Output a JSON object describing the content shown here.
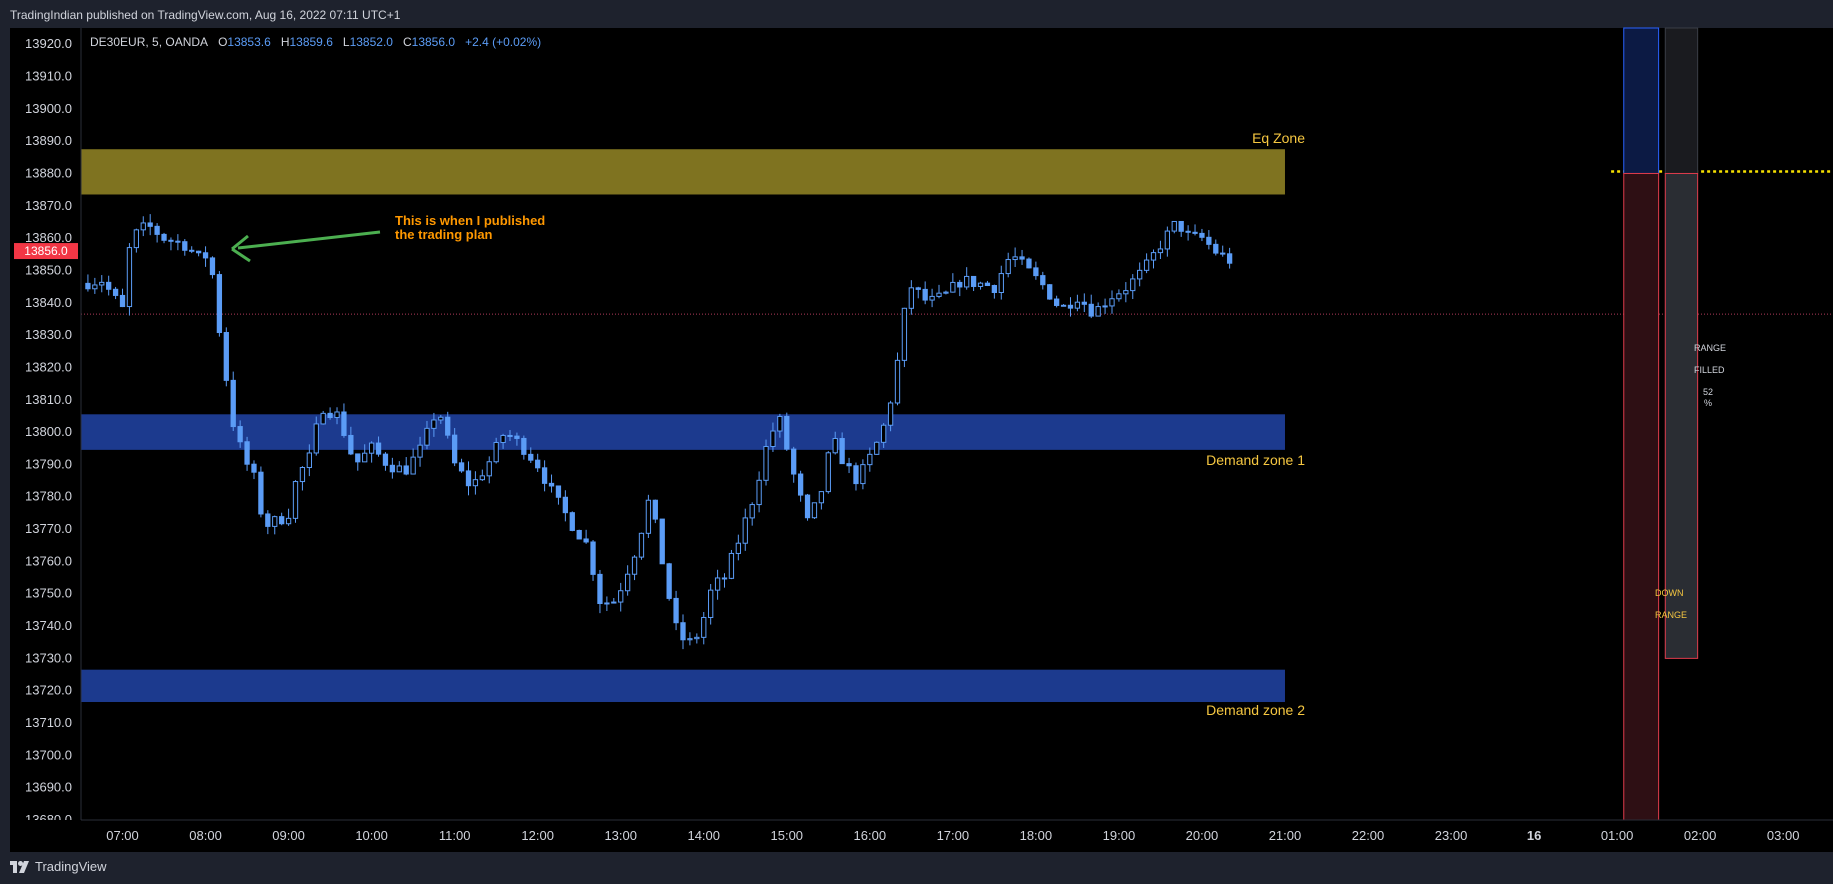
{
  "header": {
    "publish_info": "TradingIndian published on TradingView.com, Aug 16, 2022 07:11 UTC+1"
  },
  "legend": {
    "symbol": "DE30EUR, 5, OANDA",
    "o_label": "O",
    "o": "13853.6",
    "h_label": "H",
    "h": "13859.6",
    "l_label": "L",
    "l": "13852.0",
    "c_label": "C",
    "c": "13856.0",
    "change": "+2.4 (+0.02%)"
  },
  "price_tag": "13856.0",
  "zones": {
    "eq": "Eq Zone",
    "demand1": "Demand zone 1",
    "demand2": "Demand zone 2"
  },
  "annotation": [
    "This is when I published",
    "the trading plan"
  ],
  "range_boxes": {
    "down_range": "DOWN\n\nRANGE",
    "range_filled": "RANGE\n\nFILLED\n\n52\n%"
  },
  "footer": {
    "logo_text": "TradingView"
  },
  "colors": {
    "background": "#000000",
    "candle": "#5b9cf6",
    "eq_zone": "#7f7320",
    "demand_zone": "#1c3a8e",
    "zone_label": "#f6c741",
    "annotation": "#ff9800",
    "arrow": "#4caf50",
    "price_tag": "#f23645"
  },
  "chart_data": {
    "type": "candlestick",
    "symbol": "DE30EUR",
    "interval": "5",
    "ylim": [
      13680,
      13925
    ],
    "y_ticks": [
      13920,
      13910,
      13900,
      13890,
      13880,
      13870,
      13860,
      13850,
      13840,
      13830,
      13820,
      13810,
      13800,
      13790,
      13780,
      13770,
      13760,
      13750,
      13740,
      13730,
      13720,
      13710,
      13700,
      13690,
      13680
    ],
    "y_tick_labels": [
      "13920.0",
      "13910.0",
      "13900.0",
      "13890.0",
      "13880.0",
      "13870.0",
      "13860.0",
      "13850.0",
      "13840.0",
      "13830.0",
      "13820.0",
      "13810.0",
      "13800.0",
      "13790.0",
      "13780.0",
      "13770.0",
      "13760.0",
      "13750.0",
      "13740.0",
      "13730.0",
      "13720.0",
      "13710.0",
      "13700.0",
      "13690.0",
      "13680.0"
    ],
    "x_ticks": [
      "07:00",
      "08:00",
      "09:00",
      "10:00",
      "11:00",
      "12:00",
      "13:00",
      "14:00",
      "15:00",
      "16:00",
      "17:00",
      "18:00",
      "19:00",
      "20:00",
      "21:00",
      "22:00",
      "23:00",
      "16",
      "01:00",
      "02:00",
      "03:00"
    ],
    "x_tick_hours": [
      7,
      8,
      9,
      10,
      11,
      12,
      13,
      14,
      15,
      16,
      17,
      18,
      19,
      20,
      21,
      22,
      23,
      24,
      25,
      26,
      27
    ],
    "x_range_hours": [
      6.5,
      27.6
    ],
    "last_price": 13856.0,
    "dotted_level": 13836.5,
    "target_level": 13880,
    "zones": [
      {
        "name": "Eq Zone",
        "low": 13873.5,
        "high": 13887.5,
        "end_hour": 21.0
      },
      {
        "name": "Demand zone 1",
        "low": 13794.5,
        "high": 13805.5,
        "end_hour": 21.0
      },
      {
        "name": "Demand zone 2",
        "low": 13716.5,
        "high": 13726.5,
        "end_hour": 21.0
      }
    ],
    "range_boxes": [
      {
        "name": "DOWN RANGE",
        "start_hour": 25.08,
        "end_hour": 25.5,
        "top": 13880,
        "bottom": 13680
      },
      {
        "name": "RANGE FILLED 52%",
        "start_hour": 25.58,
        "end_hour": 25.97,
        "top": 13880,
        "bottom": 13730,
        "percent": 52
      }
    ],
    "price_path": [
      [
        6.5,
        13846
      ],
      [
        6.75,
        13847
      ],
      [
        7.0,
        13838
      ],
      [
        7.1,
        13860
      ],
      [
        7.3,
        13864
      ],
      [
        7.5,
        13860
      ],
      [
        7.75,
        13858
      ],
      [
        7.95,
        13853
      ],
      [
        8.05,
        13856
      ],
      [
        8.1,
        13845
      ],
      [
        8.2,
        13825
      ],
      [
        8.35,
        13800
      ],
      [
        8.5,
        13790
      ],
      [
        8.6,
        13785
      ],
      [
        8.7,
        13771
      ],
      [
        8.9,
        13773
      ],
      [
        9.0,
        13775
      ],
      [
        9.1,
        13786
      ],
      [
        9.25,
        13792
      ],
      [
        9.4,
        13808
      ],
      [
        9.6,
        13805
      ],
      [
        9.8,
        13790
      ],
      [
        10.0,
        13795
      ],
      [
        10.2,
        13790
      ],
      [
        10.4,
        13788
      ],
      [
        10.6,
        13795
      ],
      [
        10.8,
        13808
      ],
      [
        11.0,
        13790
      ],
      [
        11.2,
        13783
      ],
      [
        11.4,
        13790
      ],
      [
        11.6,
        13800
      ],
      [
        11.8,
        13796
      ],
      [
        12.0,
        13790
      ],
      [
        12.2,
        13780
      ],
      [
        12.4,
        13772
      ],
      [
        12.6,
        13765
      ],
      [
        12.75,
        13748
      ],
      [
        12.9,
        13747
      ],
      [
        13.0,
        13752
      ],
      [
        13.2,
        13765
      ],
      [
        13.35,
        13780
      ],
      [
        13.5,
        13760
      ],
      [
        13.65,
        13740
      ],
      [
        13.8,
        13734
      ],
      [
        13.95,
        13738
      ],
      [
        14.1,
        13752
      ],
      [
        14.25,
        13755
      ],
      [
        14.4,
        13765
      ],
      [
        14.6,
        13780
      ],
      [
        14.75,
        13795
      ],
      [
        14.9,
        13805
      ],
      [
        15.1,
        13785
      ],
      [
        15.25,
        13772
      ],
      [
        15.4,
        13780
      ],
      [
        15.55,
        13798
      ],
      [
        15.7,
        13790
      ],
      [
        15.85,
        13785
      ],
      [
        16.0,
        13792
      ],
      [
        16.15,
        13800
      ],
      [
        16.3,
        13815
      ],
      [
        16.4,
        13835
      ],
      [
        16.5,
        13845
      ],
      [
        16.7,
        13840
      ],
      [
        16.9,
        13842
      ],
      [
        17.1,
        13847
      ],
      [
        17.3,
        13846
      ],
      [
        17.5,
        13845
      ],
      [
        17.7,
        13855
      ],
      [
        17.9,
        13850
      ],
      [
        18.1,
        13845
      ],
      [
        18.3,
        13838
      ],
      [
        18.5,
        13842
      ],
      [
        18.7,
        13837
      ],
      [
        18.9,
        13842
      ],
      [
        19.1,
        13845
      ],
      [
        19.3,
        13850
      ],
      [
        19.5,
        13858
      ],
      [
        19.7,
        13865
      ],
      [
        19.85,
        13860
      ],
      [
        20.0,
        13860
      ],
      [
        20.2,
        13855
      ],
      [
        20.35,
        13853
      ]
    ]
  }
}
